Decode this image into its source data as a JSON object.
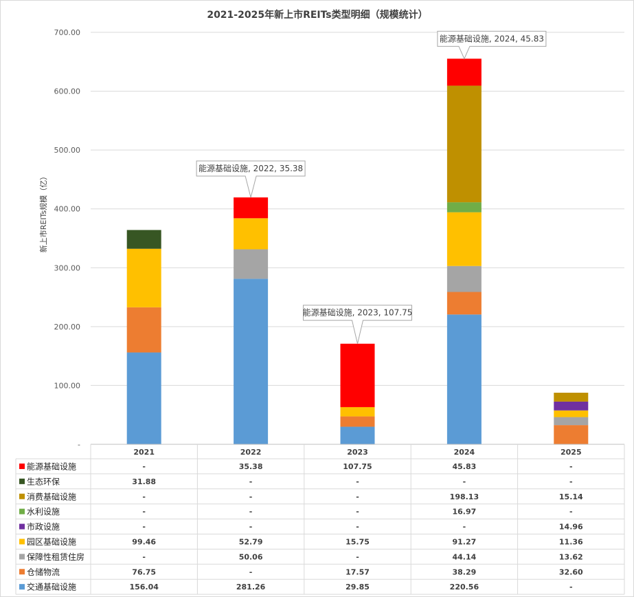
{
  "chart_data": {
    "type": "bar",
    "stacked": true,
    "title": "2021-2025年新上市REITs类型明细（规模统计）",
    "ylabel": "新上市REITs规模（亿）",
    "xlabel": "",
    "ylim": [
      0,
      700
    ],
    "yticks": [
      "-",
      "100.00",
      "200.00",
      "300.00",
      "400.00",
      "500.00",
      "600.00",
      "700.00"
    ],
    "grid": true,
    "legend": "data-table",
    "categories": [
      "2021",
      "2022",
      "2023",
      "2024",
      "2025"
    ],
    "series": [
      {
        "name": "交通基础设施",
        "color": "#5b9bd5",
        "values": [
          156.04,
          281.26,
          29.85,
          220.56,
          null
        ],
        "labels": [
          "156.04",
          "281.26",
          "29.85",
          "220.56",
          "-"
        ]
      },
      {
        "name": "仓储物流",
        "color": "#ed7d31",
        "values": [
          76.75,
          null,
          17.57,
          38.29,
          32.6
        ],
        "labels": [
          "76.75",
          "-",
          "17.57",
          "38.29",
          "32.60"
        ]
      },
      {
        "name": "保障性租赁住房",
        "color": "#a5a5a5",
        "values": [
          null,
          50.06,
          null,
          44.14,
          13.62
        ],
        "labels": [
          "-",
          "50.06",
          "-",
          "44.14",
          "13.62"
        ]
      },
      {
        "name": "园区基础设施",
        "color": "#ffc000",
        "values": [
          99.46,
          52.79,
          15.75,
          91.27,
          11.36
        ],
        "labels": [
          "99.46",
          "52.79",
          "15.75",
          "91.27",
          "11.36"
        ]
      },
      {
        "name": "市政设施",
        "color": "#7030a0",
        "values": [
          null,
          null,
          null,
          null,
          14.96
        ],
        "labels": [
          "-",
          "-",
          "-",
          "-",
          "14.96"
        ]
      },
      {
        "name": "水利设施",
        "color": "#70ad47",
        "values": [
          null,
          null,
          null,
          16.97,
          null
        ],
        "labels": [
          "-",
          "-",
          "-",
          "16.97",
          "-"
        ]
      },
      {
        "name": "消费基础设施",
        "color": "#bf9000",
        "values": [
          null,
          null,
          null,
          198.13,
          15.14
        ],
        "labels": [
          "-",
          "-",
          "-",
          "198.13",
          "15.14"
        ]
      },
      {
        "name": "生态环保",
        "color": "#375623",
        "values": [
          31.88,
          null,
          null,
          null,
          null
        ],
        "labels": [
          "31.88",
          "-",
          "-",
          "-",
          "-"
        ]
      },
      {
        "name": "能源基础设施",
        "color": "#ff0000",
        "values": [
          null,
          35.38,
          107.75,
          45.83,
          null
        ],
        "labels": [
          "-",
          "35.38",
          "107.75",
          "45.83",
          "-"
        ]
      }
    ],
    "annotations": [
      {
        "text": "能源基础设施, 2022, 35.38",
        "category": "2022",
        "series": "能源基础设施"
      },
      {
        "text": "能源基础设施, 2023, 107.75",
        "category": "2023",
        "series": "能源基础设施"
      },
      {
        "text": "能源基础设施, 2024, 45.83",
        "category": "2024",
        "series": "能源基础设施"
      }
    ]
  }
}
